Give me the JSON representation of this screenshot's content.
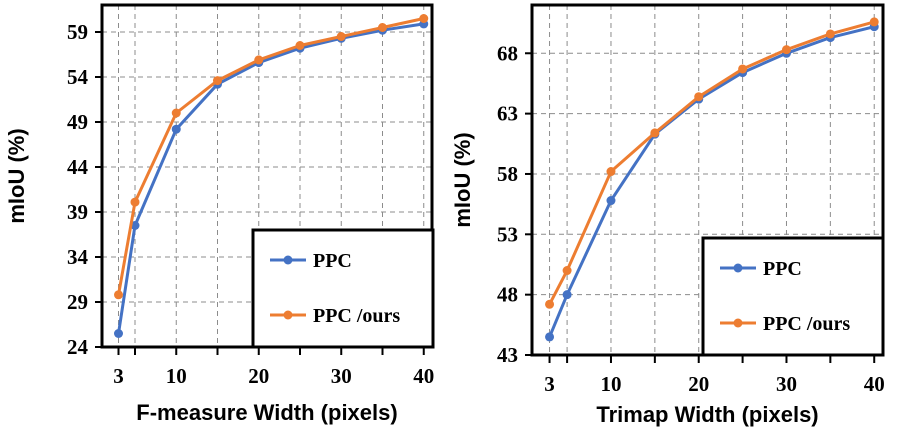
{
  "colors": {
    "ppc": "#4472C4",
    "ours": "#ED7D31",
    "grid": "#8c8c8c",
    "frame": "#000000"
  },
  "chart_data": [
    {
      "type": "line",
      "title": "",
      "xlabel": "F-measure Width (pixels)",
      "ylabel": "mIoU (%)",
      "xlim": [
        1,
        41
      ],
      "ylim": [
        24,
        62
      ],
      "x_ticks": [
        3,
        10,
        20,
        30,
        40
      ],
      "x_tick_labels": [
        "3",
        "10",
        "20",
        "30",
        "40"
      ],
      "y_ticks": [
        24,
        29,
        34,
        39,
        44,
        49,
        54,
        59
      ],
      "y_tick_labels": [
        "24",
        "29",
        "34",
        "39",
        "44",
        "49",
        "54",
        "59"
      ],
      "grid": true,
      "legend_position": "bottom-right",
      "x": [
        3,
        5,
        10,
        15,
        20,
        25,
        30,
        35,
        40
      ],
      "series": [
        {
          "name": "PPC",
          "values": [
            25.5,
            37.5,
            48.2,
            53.2,
            55.6,
            57.2,
            58.3,
            59.2,
            59.9
          ]
        },
        {
          "name": "PPC /ours",
          "values": [
            29.8,
            40.1,
            50.0,
            53.6,
            55.9,
            57.5,
            58.5,
            59.5,
            60.5
          ]
        }
      ]
    },
    {
      "type": "line",
      "title": "",
      "xlabel": "Trimap Width (pixels)",
      "ylabel": "mIoU (%)",
      "xlim": [
        1,
        41
      ],
      "ylim": [
        43,
        72
      ],
      "x_ticks": [
        3,
        10,
        20,
        30,
        40
      ],
      "x_tick_labels": [
        "3",
        "10",
        "20",
        "30",
        "40"
      ],
      "y_ticks": [
        43,
        48,
        53,
        58,
        63,
        68
      ],
      "y_tick_labels": [
        "43",
        "48",
        "53",
        "58",
        "63",
        "68"
      ],
      "grid": true,
      "legend_position": "bottom-right",
      "x": [
        3,
        5,
        10,
        15,
        20,
        25,
        30,
        35,
        40
      ],
      "series": [
        {
          "name": "PPC",
          "values": [
            44.5,
            48.0,
            55.8,
            61.3,
            64.2,
            66.4,
            68.0,
            69.3,
            70.2
          ]
        },
        {
          "name": "PPC /ours",
          "values": [
            47.2,
            50.0,
            58.2,
            61.4,
            64.4,
            66.7,
            68.3,
            69.6,
            70.6
          ]
        }
      ]
    }
  ]
}
